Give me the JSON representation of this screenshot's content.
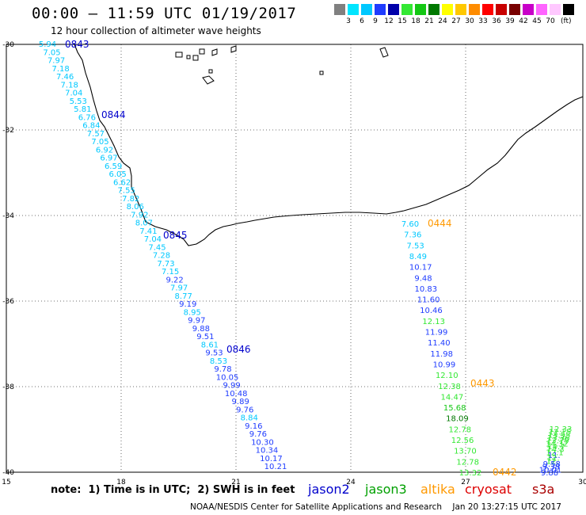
{
  "title": "00:00 – 11:59 UTC 01/19/2017",
  "subtitle": "12 hour collection of altimeter wave heights",
  "scale": {
    "colors": [
      "#808080",
      "#00e5ff",
      "#00c8ff",
      "#1f3cff",
      "#0000aa",
      "#33e833",
      "#14c814",
      "#007800",
      "#ffff00",
      "#ffc800",
      "#ff8c00",
      "#ff0000",
      "#c80000",
      "#780000",
      "#c800c8",
      "#ff64ff",
      "#ffc8ff",
      "#000000"
    ],
    "labels": [
      "3",
      "6",
      "9",
      "12",
      "15",
      "18",
      "21",
      "24",
      "27",
      "30",
      "33",
      "36",
      "39",
      "42",
      "45",
      "70"
    ],
    "unit": "(ft)"
  },
  "axes": {
    "lon": [
      "15",
      "18",
      "21",
      "24",
      "27",
      "30"
    ],
    "lat": [
      "-30",
      "-32",
      "-34",
      "-36",
      "-38",
      "-40"
    ]
  },
  "note": "note:  1) Time is in UTC;  2) SWH is in feet",
  "missions": [
    {
      "name": "jason2",
      "color": "#0000cc"
    },
    {
      "name": "jason3",
      "color": "#00a000"
    },
    {
      "name": "altika",
      "color": "#ff9900"
    },
    {
      "name": "cryosat",
      "color": "#dd0000"
    },
    {
      "name": "s3a",
      "color": "#aa0000"
    }
  ],
  "credit": "NOAA/NESDIS Center for Satellite Applications and Research    Jan 20 13:27:15 UTC 2017",
  "track1": {
    "times": [
      {
        "label": "0843",
        "color": "#0000cc"
      },
      {
        "label": "0844",
        "color": "#0000cc"
      },
      {
        "label": "0845",
        "color": "#0000cc"
      },
      {
        "label": "0846",
        "color": "#0000cc"
      }
    ],
    "values": [
      {
        "v": "5.94",
        "c": "#00c8ff"
      },
      {
        "v": "7.05",
        "c": "#00c8ff"
      },
      {
        "v": "7.97",
        "c": "#00c8ff"
      },
      {
        "v": "7.18",
        "c": "#00c8ff"
      },
      {
        "v": "7.46",
        "c": "#00c8ff"
      },
      {
        "v": "7.18",
        "c": "#00c8ff"
      },
      {
        "v": "7.04",
        "c": "#00c8ff"
      },
      {
        "v": "5.53",
        "c": "#00c8ff"
      },
      {
        "v": "5.81",
        "c": "#00c8ff"
      },
      {
        "v": "6.76",
        "c": "#00c8ff"
      },
      {
        "v": "6.84",
        "c": "#00c8ff"
      },
      {
        "v": "7.57",
        "c": "#00c8ff"
      },
      {
        "v": "7.05",
        "c": "#00c8ff"
      },
      {
        "v": "6.92",
        "c": "#00c8ff"
      },
      {
        "v": "6.97",
        "c": "#00c8ff"
      },
      {
        "v": "6.59",
        "c": "#00c8ff"
      },
      {
        "v": "6.05",
        "c": "#00c8ff"
      },
      {
        "v": "6.62",
        "c": "#00c8ff"
      },
      {
        "v": "7.55",
        "c": "#00c8ff"
      },
      {
        "v": "7.82",
        "c": "#00c8ff"
      },
      {
        "v": "8.06",
        "c": "#00c8ff"
      },
      {
        "v": "7.92",
        "c": "#00c8ff"
      },
      {
        "v": "8.07",
        "c": "#00c8ff"
      },
      {
        "v": "7.41",
        "c": "#00c8ff"
      },
      {
        "v": "7.04",
        "c": "#00c8ff"
      },
      {
        "v": "7.45",
        "c": "#00c8ff"
      },
      {
        "v": "7.28",
        "c": "#00c8ff"
      },
      {
        "v": "7.73",
        "c": "#00c8ff"
      },
      {
        "v": "7.15",
        "c": "#00c8ff"
      },
      {
        "v": "9.22",
        "c": "#1f3cff"
      },
      {
        "v": "7.97",
        "c": "#00c8ff"
      },
      {
        "v": "8.77",
        "c": "#00c8ff"
      },
      {
        "v": "9.19",
        "c": "#1f3cff"
      },
      {
        "v": "8.95",
        "c": "#00c8ff"
      },
      {
        "v": "9.97",
        "c": "#1f3cff"
      },
      {
        "v": "9.88",
        "c": "#1f3cff"
      },
      {
        "v": "9.51",
        "c": "#1f3cff"
      },
      {
        "v": "8.61",
        "c": "#00c8ff"
      },
      {
        "v": "9.53",
        "c": "#1f3cff"
      },
      {
        "v": "8.53",
        "c": "#00c8ff"
      },
      {
        "v": "9.78",
        "c": "#1f3cff"
      },
      {
        "v": "10.05",
        "c": "#1f3cff"
      },
      {
        "v": "9.99",
        "c": "#1f3cff"
      },
      {
        "v": "10.48",
        "c": "#1f3cff"
      },
      {
        "v": "9.89",
        "c": "#1f3cff"
      },
      {
        "v": "9.76",
        "c": "#1f3cff"
      },
      {
        "v": "8.84",
        "c": "#00c8ff"
      },
      {
        "v": "9.16",
        "c": "#1f3cff"
      },
      {
        "v": "9.76",
        "c": "#1f3cff"
      },
      {
        "v": "10.30",
        "c": "#1f3cff"
      },
      {
        "v": "10.34",
        "c": "#1f3cff"
      },
      {
        "v": "10.17",
        "c": "#1f3cff"
      },
      {
        "v": "10.21",
        "c": "#1f3cff"
      }
    ]
  },
  "track2": {
    "times": [
      {
        "label": "0444",
        "color": "#ff9900"
      },
      {
        "label": "0443",
        "color": "#ff9900"
      },
      {
        "label": "0442",
        "color": "#ff9900"
      }
    ],
    "values": [
      {
        "v": "7.60",
        "c": "#00c8ff"
      },
      {
        "v": "7.36",
        "c": "#00c8ff"
      },
      {
        "v": "7.53",
        "c": "#00c8ff"
      },
      {
        "v": "8.49",
        "c": "#00c8ff"
      },
      {
        "v": "10.17",
        "c": "#1f3cff"
      },
      {
        "v": "9.48",
        "c": "#1f3cff"
      },
      {
        "v": "10.83",
        "c": "#1f3cff"
      },
      {
        "v": "11.60",
        "c": "#1f3cff"
      },
      {
        "v": "10.46",
        "c": "#1f3cff"
      },
      {
        "v": "12.13",
        "c": "#33e833"
      },
      {
        "v": "11.99",
        "c": "#1f3cff"
      },
      {
        "v": "11.40",
        "c": "#1f3cff"
      },
      {
        "v": "11.98",
        "c": "#1f3cff"
      },
      {
        "v": "10.99",
        "c": "#1f3cff"
      },
      {
        "v": "12.10",
        "c": "#33e833"
      },
      {
        "v": "12.38",
        "c": "#33e833"
      },
      {
        "v": "14.47",
        "c": "#33e833"
      },
      {
        "v": "15.68",
        "c": "#14c814"
      },
      {
        "v": "18.09",
        "c": "#007800"
      },
      {
        "v": "12.78",
        "c": "#33e833"
      },
      {
        "v": "12.56",
        "c": "#33e833"
      },
      {
        "v": "13.70",
        "c": "#33e833"
      },
      {
        "v": "12.78",
        "c": "#33e833"
      },
      {
        "v": "13.32",
        "c": "#33e833"
      }
    ]
  },
  "track3": {
    "values": [
      {
        "v": "12.33",
        "c": "#33e833"
      },
      {
        "v": "12.15",
        "c": "#33e833"
      },
      {
        "v": "13.55",
        "c": "#33e833"
      },
      {
        "v": "13.36",
        "c": "#33e833"
      },
      {
        "v": "13.79",
        "c": "#33e833"
      },
      {
        "v": "14.32",
        "c": "#33e833"
      },
      {
        "v": "14.7",
        "c": "#33e833"
      },
      {
        "v": "14.3",
        "c": "#33e833"
      },
      {
        "v": "12.1",
        "c": "#33e833"
      },
      {
        "v": "11.",
        "c": "#1f3cff"
      },
      {
        "v": "12.",
        "c": "#33e833"
      },
      {
        "v": "12.",
        "c": "#33e833"
      },
      {
        "v": "9.58",
        "c": "#1f3cff"
      },
      {
        "v": "9.38",
        "c": "#1f3cff"
      },
      {
        "v": "10.01",
        "c": "#1f3cff"
      },
      {
        "v": "9.88",
        "c": "#1f3cff"
      }
    ]
  }
}
